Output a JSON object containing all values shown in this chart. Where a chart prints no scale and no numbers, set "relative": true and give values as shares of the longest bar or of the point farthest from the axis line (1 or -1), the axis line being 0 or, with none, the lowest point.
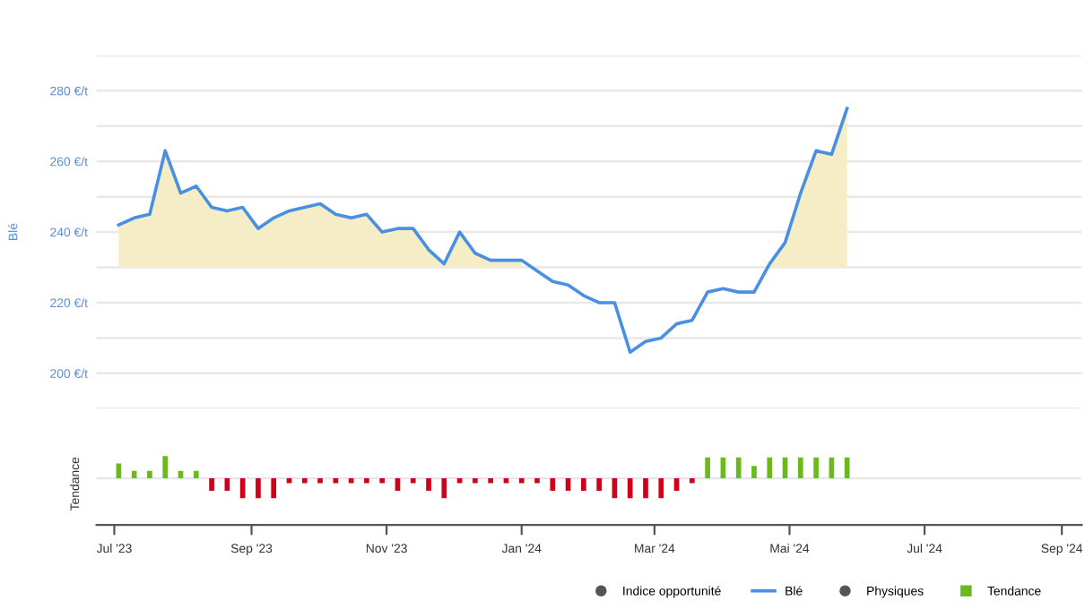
{
  "chart_data": [
    {
      "type": "line",
      "ylabel": "Blé",
      "x": [
        "2023-07-03",
        "2023-07-10",
        "2023-07-17",
        "2023-07-24",
        "2023-07-31",
        "2023-08-07",
        "2023-08-14",
        "2023-08-21",
        "2023-08-28",
        "2023-09-04",
        "2023-09-11",
        "2023-09-18",
        "2023-09-25",
        "2023-10-02",
        "2023-10-09",
        "2023-10-16",
        "2023-10-23",
        "2023-10-30",
        "2023-11-06",
        "2023-11-13",
        "2023-11-20",
        "2023-11-27",
        "2023-12-04",
        "2023-12-11",
        "2023-12-18",
        "2023-12-25",
        "2024-01-01",
        "2024-01-08",
        "2024-01-15",
        "2024-01-22",
        "2024-01-29",
        "2024-02-05",
        "2024-02-12",
        "2024-02-19",
        "2024-02-26",
        "2024-03-04",
        "2024-03-11",
        "2024-03-18",
        "2024-03-25",
        "2024-04-01",
        "2024-04-08",
        "2024-04-15",
        "2024-04-22",
        "2024-04-29",
        "2024-05-06",
        "2024-05-13",
        "2024-05-20",
        "2024-05-27"
      ],
      "series": [
        {
          "name": "Indice opportunité",
          "type": "scatter",
          "color": "#555555",
          "values": [
            null,
            null,
            null,
            null,
            null,
            null,
            null,
            null,
            null,
            null,
            null,
            null,
            null,
            null,
            null,
            null,
            null,
            null,
            null,
            null,
            null,
            null,
            null,
            null,
            null,
            null,
            null,
            null,
            null,
            null,
            null,
            null,
            null,
            null,
            null,
            null,
            null,
            null,
            null,
            null,
            null,
            null,
            null,
            null,
            null,
            null,
            null,
            null
          ]
        },
        {
          "name": "Blé",
          "color": "#4a90e2",
          "values": [
            242,
            244,
            245,
            263,
            251,
            253,
            247,
            246,
            247,
            241,
            244,
            246,
            247,
            248,
            245,
            244,
            245,
            240,
            241,
            241,
            235,
            231,
            240,
            234,
            232,
            232,
            232,
            229,
            226,
            225,
            222,
            220,
            220,
            206,
            209,
            210,
            214,
            215,
            223,
            224,
            223,
            223,
            231,
            237,
            251,
            263,
            262,
            275
          ],
          "lower": [
            230,
            230,
            230,
            230,
            230,
            230,
            230,
            230,
            230,
            230,
            230,
            230,
            230,
            230,
            230,
            230,
            230,
            230,
            230,
            230,
            230,
            230,
            230,
            230,
            230,
            230,
            230,
            null,
            null,
            null,
            null,
            null,
            null,
            null,
            null,
            null,
            null,
            null,
            null,
            null,
            null,
            null,
            230,
            230,
            230,
            230,
            230,
            230
          ],
          "upper": [
            242,
            244,
            245,
            263,
            251,
            253,
            247,
            246,
            247,
            241,
            244,
            246,
            247,
            248,
            245,
            244,
            245,
            240,
            241,
            241,
            235,
            231,
            240,
            234,
            232,
            232,
            232,
            null,
            null,
            null,
            null,
            null,
            null,
            null,
            null,
            null,
            null,
            null,
            null,
            null,
            null,
            null,
            231,
            237,
            251,
            263,
            262,
            275
          ]
        }
      ],
      "xlim": [
        "2023-06-23",
        "2024-09-10"
      ],
      "ylim": [
        190,
        290
      ],
      "yticks": [
        {
          "value": 190,
          "label": null
        },
        {
          "value": 200,
          "label": "200 €/t"
        },
        {
          "value": 210,
          "label": null
        },
        {
          "value": 220,
          "label": "220 €/t"
        },
        {
          "value": 230,
          "label": null
        },
        {
          "value": 240,
          "label": "240 €/t"
        },
        {
          "value": 250,
          "label": null
        },
        {
          "value": 260,
          "label": "260 €/t"
        },
        {
          "value": 270,
          "label": null
        },
        {
          "value": 280,
          "label": "280 €/t"
        },
        {
          "value": 290,
          "label": null
        }
      ],
      "grid": "y",
      "tick_labels": "y",
      "legend": "bottom right"
    },
    {
      "type": "bar",
      "ylabel": "Tendance",
      "relative": true,
      "x": [
        "2023-07-03",
        "2023-07-10",
        "2023-07-17",
        "2023-07-24",
        "2023-07-31",
        "2023-08-07",
        "2023-08-14",
        "2023-08-21",
        "2023-08-28",
        "2023-09-04",
        "2023-09-11",
        "2023-09-18",
        "2023-09-25",
        "2023-10-02",
        "2023-10-09",
        "2023-10-16",
        "2023-10-23",
        "2023-10-30",
        "2023-11-06",
        "2023-11-13",
        "2023-11-20",
        "2023-11-27",
        "2023-12-04",
        "2023-12-11",
        "2023-12-18",
        "2023-12-25",
        "2024-01-01",
        "2024-01-08",
        "2024-01-15",
        "2024-01-22",
        "2024-01-29",
        "2024-02-05",
        "2024-02-12",
        "2024-02-19",
        "2024-02-26",
        "2024-03-04",
        "2024-03-11",
        "2024-03-18",
        "2024-03-25",
        "2024-04-01",
        "2024-04-08",
        "2024-04-15",
        "2024-04-22",
        "2024-04-29",
        "2024-05-06",
        "2024-05-13",
        "2024-05-20",
        "2024-05-27"
      ],
      "series": [
        {
          "name": "Physiques",
          "type": "scatter",
          "color": "#555555",
          "values": [
            null,
            null,
            null,
            null,
            null,
            null,
            null,
            null,
            null,
            null,
            null,
            null,
            null,
            null,
            null,
            null,
            null,
            null,
            null,
            null,
            null,
            null,
            null,
            null,
            null,
            null,
            null,
            null,
            null,
            null,
            null,
            null,
            null,
            null,
            null,
            null,
            null,
            null,
            null,
            null,
            null,
            null,
            null,
            null,
            null,
            null,
            null,
            null
          ]
        },
        {
          "name": "Tendance",
          "color": "#6aba1c",
          "values": [
            0.67,
            0.33,
            0.33,
            1,
            0.33,
            0.33,
            -0.56,
            -0.56,
            -0.89,
            -0.89,
            -0.89,
            -0.22,
            -0.22,
            -0.22,
            -0.22,
            -0.22,
            -0.22,
            -0.22,
            -0.56,
            -0.22,
            -0.56,
            -0.89,
            -0.22,
            -0.22,
            -0.22,
            -0.22,
            -0.22,
            -0.22,
            -0.56,
            -0.56,
            -0.56,
            -0.56,
            -0.89,
            -0.89,
            -0.89,
            -0.89,
            -0.56,
            -0.22,
            0.94,
            0.94,
            0.94,
            0.56,
            0.94,
            0.94,
            0.94,
            0.94,
            0.94,
            0.94
          ],
          "colors": [
            "#6aba1c",
            "#6aba1c",
            "#6aba1c",
            "#6aba1c",
            "#6aba1c",
            "#6aba1c",
            "#d0021b",
            "#d0021b",
            "#d0021b",
            "#d0021b",
            "#d0021b",
            "#d0021b",
            "#d0021b",
            "#d0021b",
            "#d0021b",
            "#d0021b",
            "#d0021b",
            "#d0021b",
            "#d0021b",
            "#d0021b",
            "#d0021b",
            "#d0021b",
            "#d0021b",
            "#d0021b",
            "#d0021b",
            "#d0021b",
            "#d0021b",
            "#d0021b",
            "#d0021b",
            "#d0021b",
            "#d0021b",
            "#d0021b",
            "#d0021b",
            "#d0021b",
            "#d0021b",
            "#d0021b",
            "#d0021b",
            "#d0021b",
            "#6aba1c",
            "#6aba1c",
            "#6aba1c",
            "#6aba1c",
            "#6aba1c",
            "#6aba1c",
            "#6aba1c",
            "#6aba1c",
            "#6aba1c",
            "#6aba1c"
          ]
        }
      ],
      "xlim": [
        "2023-06-23",
        "2024-09-10"
      ],
      "xticks": [
        {
          "value": "2023-07-01",
          "label": "Jul '23"
        },
        {
          "value": "2023-09-01",
          "label": "Sep '23"
        },
        {
          "value": "2023-11-01",
          "label": "Nov '23"
        },
        {
          "value": "2024-01-01",
          "label": "Jan '24"
        },
        {
          "value": "2024-03-01",
          "label": "Mar '24"
        },
        {
          "value": "2024-05-01",
          "label": "Mai '24"
        },
        {
          "value": "2024-07-01",
          "label": "Jul '24"
        },
        {
          "value": "2024-09-01",
          "label": "Sep '24"
        }
      ],
      "tick_labels": "x",
      "legend": "bottom right"
    }
  ]
}
